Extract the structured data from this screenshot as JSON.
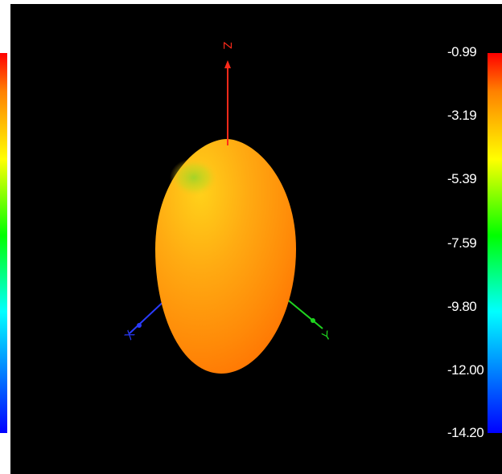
{
  "viewer": {
    "axes": {
      "z_label": "Z",
      "x_label": "X",
      "y_label": "Y",
      "z_color": "#ff2a1a",
      "x_color": "#2a3cff",
      "y_color": "#1fd41f"
    },
    "pattern_colors": {
      "base": "#ff6a00",
      "highlight": "#ffc21a",
      "peak": "#9ad42a"
    },
    "background_color": "#000000",
    "colorbar": {
      "ticks": [
        "-0.99",
        "-3.19",
        "-5.39",
        "-7.59",
        "-9.80",
        "-12.00",
        "-14.20"
      ],
      "colors": [
        "#ff0000",
        "#ff8000",
        "#ffff00",
        "#00ff00",
        "#00ffff",
        "#0080ff",
        "#0000ff"
      ]
    }
  }
}
